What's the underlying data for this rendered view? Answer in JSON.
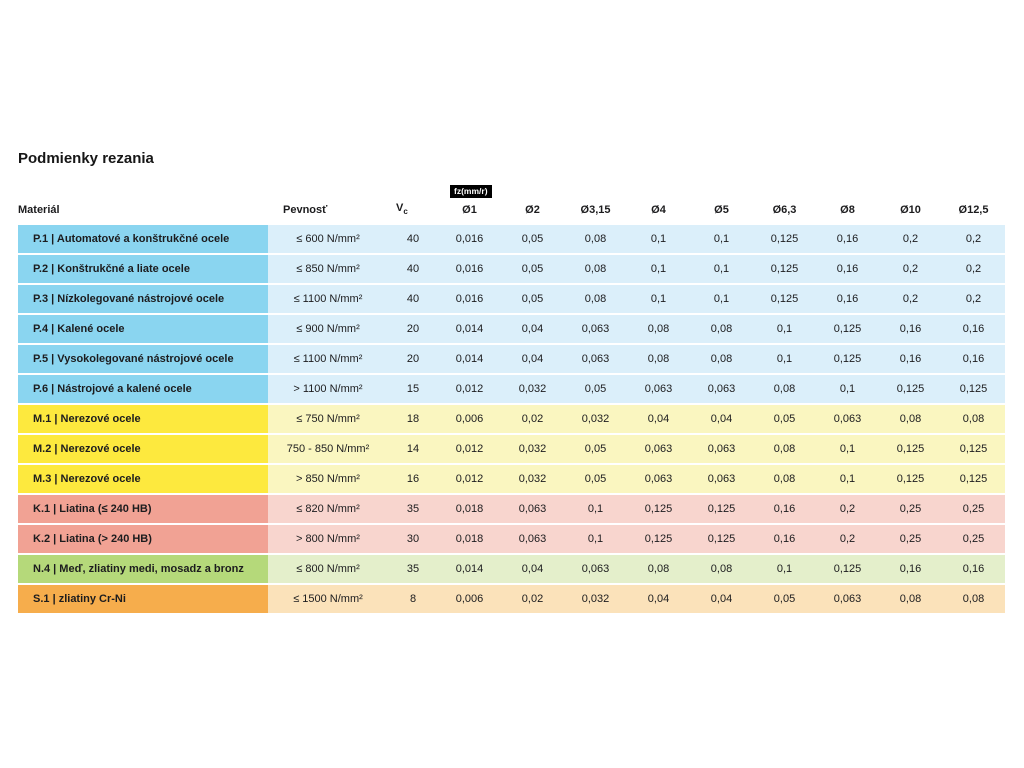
{
  "chart_data": {
    "type": "table",
    "title": "Podmienky rezania",
    "headers": {
      "material": "Materiál",
      "strength": "Pevnosť",
      "vc_main": "V",
      "vc_sub": "c",
      "fz_label": "fz(mm/r)",
      "diameters": [
        "Ø1",
        "Ø2",
        "Ø3,15",
        "Ø4",
        "Ø5",
        "Ø6,3",
        "Ø8",
        "Ø10",
        "Ø12,5"
      ]
    },
    "group_colors": {
      "P": {
        "label_bg": "#8ad5f0",
        "row_bg": "#dbeffa"
      },
      "M": {
        "label_bg": "#fde93e",
        "row_bg": "#faf6c0"
      },
      "K": {
        "label_bg": "#f1a294",
        "row_bg": "#f8d5ce"
      },
      "N": {
        "label_bg": "#b5d97a",
        "row_bg": "#e4efcb"
      },
      "S": {
        "label_bg": "#f6ad4c",
        "row_bg": "#fbe2ba"
      }
    },
    "rows": [
      {
        "group": "P",
        "material": "P.1 | Automatové a konštrukčné ocele",
        "strength": "≤ 600 N/mm²",
        "vc": "40",
        "fz": [
          "0,016",
          "0,05",
          "0,08",
          "0,1",
          "0,1",
          "0,125",
          "0,16",
          "0,2",
          "0,2"
        ]
      },
      {
        "group": "P",
        "material": "P.2 | Konštrukčné a liate ocele",
        "strength": "≤ 850 N/mm²",
        "vc": "40",
        "fz": [
          "0,016",
          "0,05",
          "0,08",
          "0,1",
          "0,1",
          "0,125",
          "0,16",
          "0,2",
          "0,2"
        ]
      },
      {
        "group": "P",
        "material": "P.3 | Nízkolegované nástrojové ocele",
        "strength": "≤ 1100 N/mm²",
        "vc": "40",
        "fz": [
          "0,016",
          "0,05",
          "0,08",
          "0,1",
          "0,1",
          "0,125",
          "0,16",
          "0,2",
          "0,2"
        ]
      },
      {
        "group": "P",
        "material": "P.4 | Kalené ocele",
        "strength": "≤ 900 N/mm²",
        "vc": "20",
        "fz": [
          "0,014",
          "0,04",
          "0,063",
          "0,08",
          "0,08",
          "0,1",
          "0,125",
          "0,16",
          "0,16"
        ]
      },
      {
        "group": "P",
        "material": "P.5 | Vysokolegované nástrojové ocele",
        "strength": "≤ 1100 N/mm²",
        "vc": "20",
        "fz": [
          "0,014",
          "0,04",
          "0,063",
          "0,08",
          "0,08",
          "0,1",
          "0,125",
          "0,16",
          "0,16"
        ]
      },
      {
        "group": "P",
        "material": "P.6 | Nástrojové a kalené ocele",
        "strength": "> 1100 N/mm²",
        "vc": "15",
        "fz": [
          "0,012",
          "0,032",
          "0,05",
          "0,063",
          "0,063",
          "0,08",
          "0,1",
          "0,125",
          "0,125"
        ]
      },
      {
        "group": "M",
        "material": "M.1 | Nerezové ocele",
        "strength": "≤ 750 N/mm²",
        "vc": "18",
        "fz": [
          "0,006",
          "0,02",
          "0,032",
          "0,04",
          "0,04",
          "0,05",
          "0,063",
          "0,08",
          "0,08"
        ]
      },
      {
        "group": "M",
        "material": "M.2 | Nerezové ocele",
        "strength": "750 - 850 N/mm²",
        "vc": "14",
        "fz": [
          "0,012",
          "0,032",
          "0,05",
          "0,063",
          "0,063",
          "0,08",
          "0,1",
          "0,125",
          "0,125"
        ]
      },
      {
        "group": "M",
        "material": "M.3 | Nerezové ocele",
        "strength": "> 850 N/mm²",
        "vc": "16",
        "fz": [
          "0,012",
          "0,032",
          "0,05",
          "0,063",
          "0,063",
          "0,08",
          "0,1",
          "0,125",
          "0,125"
        ]
      },
      {
        "group": "K",
        "material": "K.1 | Liatina (≤ 240 HB)",
        "strength": "≤ 820 N/mm²",
        "vc": "35",
        "fz": [
          "0,018",
          "0,063",
          "0,1",
          "0,125",
          "0,125",
          "0,16",
          "0,2",
          "0,25",
          "0,25"
        ]
      },
      {
        "group": "K",
        "material": "K.2 | Liatina (> 240 HB)",
        "strength": "> 800 N/mm²",
        "vc": "30",
        "fz": [
          "0,018",
          "0,063",
          "0,1",
          "0,125",
          "0,125",
          "0,16",
          "0,2",
          "0,25",
          "0,25"
        ]
      },
      {
        "group": "N",
        "material": "N.4 | Meď, zliatiny medi, mosadz a bronz",
        "strength": "≤ 800 N/mm²",
        "vc": "35",
        "fz": [
          "0,014",
          "0,04",
          "0,063",
          "0,08",
          "0,08",
          "0,1",
          "0,125",
          "0,16",
          "0,16"
        ]
      },
      {
        "group": "S",
        "material": "S.1 | zliatiny Cr-Ni",
        "strength": "≤ 1500 N/mm²",
        "vc": "8",
        "fz": [
          "0,006",
          "0,02",
          "0,032",
          "0,04",
          "0,04",
          "0,05",
          "0,063",
          "0,08",
          "0,08"
        ]
      }
    ]
  }
}
